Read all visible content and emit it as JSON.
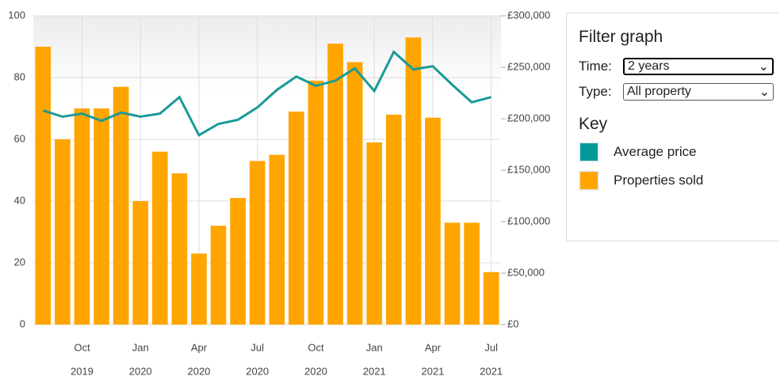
{
  "chart_data": {
    "type": "bar_line",
    "categories": [
      null,
      null,
      [
        "Oct",
        "2019"
      ],
      null,
      null,
      [
        "Jan",
        "2020"
      ],
      null,
      null,
      [
        "Apr",
        "2020"
      ],
      null,
      null,
      [
        "Jul",
        "2020"
      ],
      null,
      null,
      [
        "Oct",
        "2020"
      ],
      null,
      null,
      [
        "Jan",
        "2021"
      ],
      null,
      null,
      [
        "Apr",
        "2021"
      ],
      null,
      null,
      [
        "Jul",
        "2021"
      ]
    ],
    "series": [
      {
        "name": "Properties sold",
        "color": "#ffa500",
        "type": "bar",
        "values": [
          90,
          60,
          70,
          70,
          77,
          40,
          56,
          49,
          23,
          32,
          41,
          53,
          55,
          69,
          79,
          91,
          85,
          59,
          68,
          93,
          67,
          33,
          33,
          17
        ]
      },
      {
        "name": "Average price",
        "color": "#1a9a96",
        "type": "line",
        "axis": "y2",
        "values": [
          208000,
          202000,
          205000,
          198000,
          206000,
          202000,
          205000,
          221000,
          184000,
          195000,
          199000,
          211000,
          228000,
          241000,
          232000,
          237000,
          249000,
          227000,
          265000,
          248000,
          251000,
          233000,
          216000,
          221000
        ]
      }
    ],
    "ylim": [
      0,
      100
    ],
    "yticks": [
      0,
      20,
      40,
      60,
      80,
      100
    ],
    "y2lim": [
      0,
      300000
    ],
    "y2ticks": [
      {
        "value": 0,
        "label": "£0"
      },
      {
        "value": 50000,
        "label": "£50,000"
      },
      {
        "value": 100000,
        "label": "£100,000"
      },
      {
        "value": 150000,
        "label": "£150,000"
      },
      {
        "value": 200000,
        "label": "£200,000"
      },
      {
        "value": 250000,
        "label": "£250,000"
      },
      {
        "value": 300000,
        "label": "£300,000"
      }
    ],
    "grid": true
  },
  "panel": {
    "title": "Filter graph",
    "time_label": "Time:",
    "time_value": "2 years",
    "type_label": "Type:",
    "type_value": "All property",
    "key_title": "Key",
    "key_colors": [
      "#009999",
      "#ffa500"
    ]
  }
}
